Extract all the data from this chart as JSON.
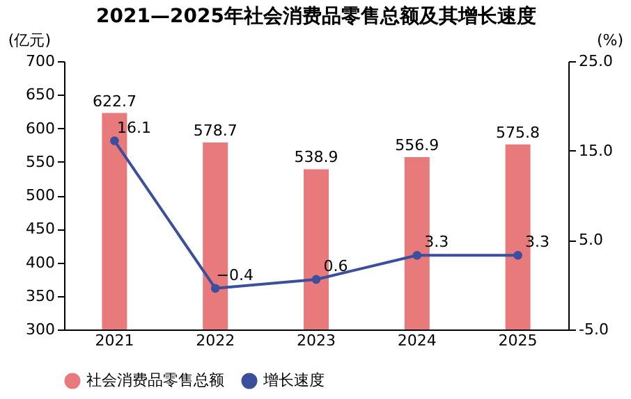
{
  "chart_data": {
    "type": "bar",
    "title": "2021—2025年社会消费品零售总额及其增长速度",
    "ylabel": "(亿元)",
    "y2label": "(%)",
    "categories": [
      "2021",
      "2022",
      "2023",
      "2024",
      "2025"
    ],
    "series": [
      {
        "name": "社会消费品零售总额",
        "color": "#e87a7c",
        "values": [
          622.7,
          578.7,
          538.9,
          556.9,
          575.8
        ]
      },
      {
        "name": "增长速度",
        "type": "line",
        "axis": "y2",
        "color": "#3b4f9c",
        "values": [
          16.1,
          -0.4,
          0.6,
          3.3,
          3.3
        ]
      }
    ],
    "ylim": [
      300,
      700
    ],
    "yticks": [
      300,
      350,
      400,
      450,
      500,
      550,
      600,
      650,
      700
    ],
    "y2lim": [
      -5,
      25
    ],
    "y2ticks": [
      {
        "value": -5,
        "label": "-5.0"
      },
      {
        "value": 5,
        "label": "5.0"
      },
      {
        "value": 15,
        "label": "15.0"
      },
      {
        "value": 25,
        "label": "25.0"
      }
    ],
    "data_labels": true,
    "legend": "bottom",
    "marker": "circle",
    "line_style": "solid",
    "grid": false
  }
}
